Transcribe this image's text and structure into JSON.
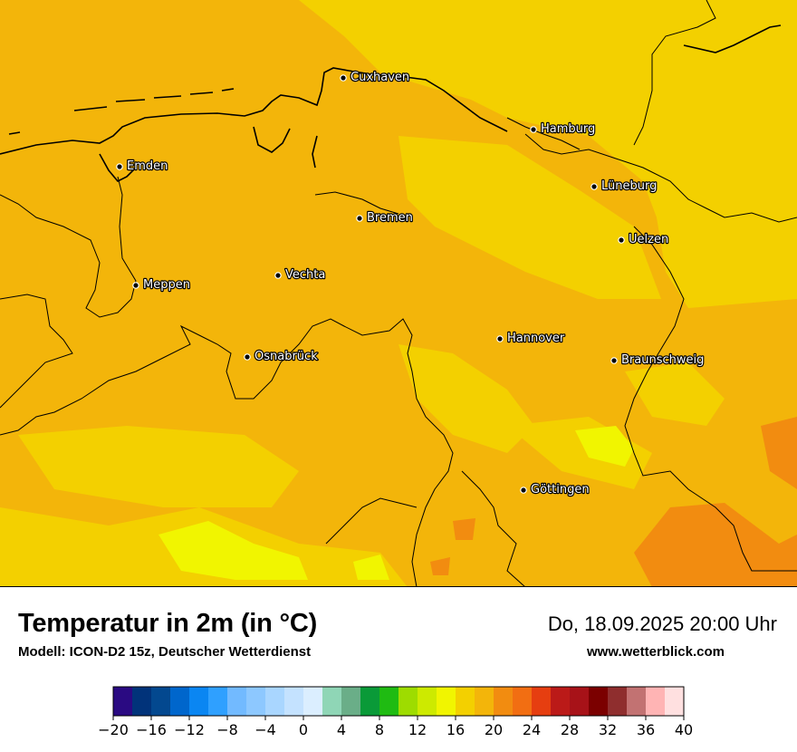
{
  "title": "Temperatur in 2m (in °C)",
  "subtitle": "Modell: ICON-D2 15z, Deutscher Wetterdienst",
  "datetime": "Do, 18.09.2025 20:00 Uhr",
  "website": "www.wetterblick.com",
  "cities": [
    {
      "name": "Cuxhaven"
    },
    {
      "name": "Hamburg"
    },
    {
      "name": "Emden"
    },
    {
      "name": "Lüneburg"
    },
    {
      "name": "Bremen"
    },
    {
      "name": "Uelzen"
    },
    {
      "name": "Vechta"
    },
    {
      "name": "Meppen"
    },
    {
      "name": "Hannover"
    },
    {
      "name": "Osnabrück"
    },
    {
      "name": "Braunschweig"
    },
    {
      "name": "Göttingen"
    }
  ],
  "colorbar": {
    "min": -20,
    "max": 40,
    "step": 2,
    "tick_labels": [
      "−20",
      "−16",
      "−12",
      "−8",
      "−4",
      "0",
      "4",
      "8",
      "12",
      "16",
      "20",
      "24",
      "28",
      "32",
      "36",
      "40"
    ],
    "colors": [
      "#2a0a82",
      "#01337a",
      "#03488f",
      "#0066cc",
      "#0a86f2",
      "#2fa0ff",
      "#72baff",
      "#8dc8ff",
      "#a9d6ff",
      "#c4e2ff",
      "#dbeeff",
      "#8fd6b6",
      "#6aae88",
      "#0a9a38",
      "#1fbb12",
      "#9edc00",
      "#cdea00",
      "#f1f500",
      "#f3d000",
      "#f3b50a",
      "#f28c10",
      "#f26e12",
      "#e63e10",
      "#bb1a18",
      "#a71218",
      "#7b0000",
      "#8f2e2e",
      "#c27272",
      "#ffb4b4",
      "#ffe0e0"
    ]
  }
}
